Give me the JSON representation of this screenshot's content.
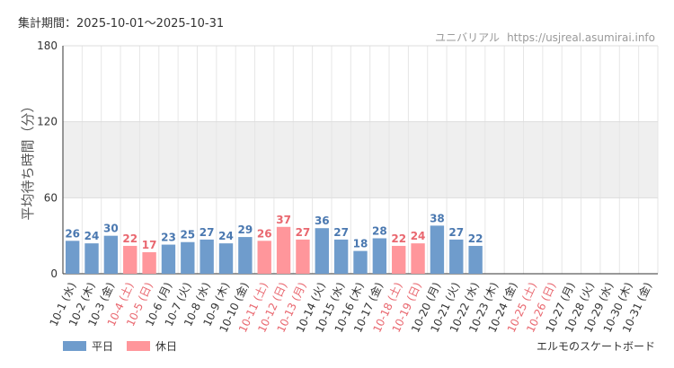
{
  "header": {
    "period_label": "集計期間：",
    "period_range": "2025-10-01～2025-10-31",
    "site_name": "ユニバリアル",
    "site_url": "https://usjreal.asumirai.info"
  },
  "footer": {
    "attraction": "エルモのスケートボード"
  },
  "colors": {
    "weekday": "#6f9ccc",
    "holiday": "#ff969b",
    "weekday_label": "#4a78b0",
    "holiday_label": "#e9676f",
    "band": "#efefef"
  },
  "chart_data": {
    "type": "bar",
    "ylabel": "平均待ち時間（分）",
    "ylim": [
      0,
      180
    ],
    "yticks": [
      0,
      60,
      120,
      180
    ],
    "shaded_band": [
      60,
      120
    ],
    "grid": true,
    "legend_position": "bottom-left",
    "series": [
      {
        "name": "平日",
        "key": "weekday"
      },
      {
        "name": "休日",
        "key": "holiday"
      }
    ],
    "categories": [
      "10-1 (水)",
      "10-2 (木)",
      "10-3 (金)",
      "10-4 (土)",
      "10-5 (日)",
      "10-6 (月)",
      "10-7 (火)",
      "10-8 (水)",
      "10-9 (木)",
      "10-10 (金)",
      "10-11 (土)",
      "10-12 (日)",
      "10-13 (月)",
      "10-14 (火)",
      "10-15 (水)",
      "10-16 (木)",
      "10-17 (金)",
      "10-18 (土)",
      "10-19 (日)",
      "10-20 (月)",
      "10-21 (火)",
      "10-22 (水)",
      "10-23 (木)",
      "10-24 (金)",
      "10-25 (土)",
      "10-26 (日)",
      "10-27 (月)",
      "10-28 (火)",
      "10-29 (水)",
      "10-30 (木)",
      "10-31 (金)"
    ],
    "values": [
      26,
      24,
      30,
      22,
      17,
      23,
      25,
      27,
      24,
      29,
      26,
      37,
      27,
      36,
      27,
      18,
      28,
      22,
      24,
      38,
      27,
      22,
      null,
      null,
      null,
      null,
      null,
      null,
      null,
      null,
      null
    ],
    "day_type": [
      "weekday",
      "weekday",
      "weekday",
      "holiday",
      "holiday",
      "weekday",
      "weekday",
      "weekday",
      "weekday",
      "weekday",
      "holiday",
      "holiday",
      "holiday",
      "weekday",
      "weekday",
      "weekday",
      "weekday",
      "holiday",
      "holiday",
      "weekday",
      "weekday",
      "weekday",
      "weekday",
      "weekday",
      "holiday",
      "holiday",
      "weekday",
      "weekday",
      "weekday",
      "weekday",
      "weekday"
    ]
  }
}
